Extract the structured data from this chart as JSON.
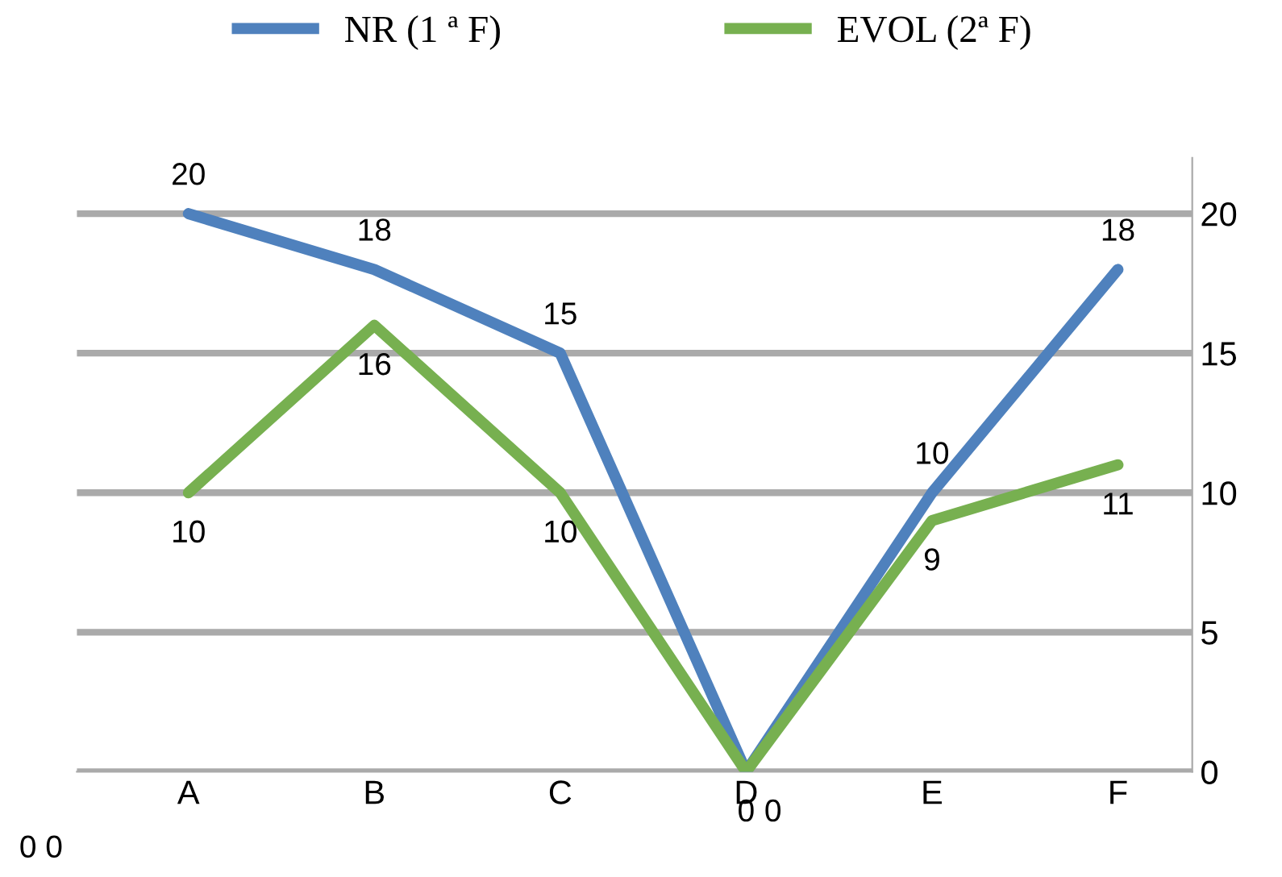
{
  "chart_data": {
    "type": "line",
    "categories": [
      "A",
      "B",
      "C",
      "D",
      "E",
      "F"
    ],
    "series": [
      {
        "name": "NR (1 ª F)",
        "color": "#4f81bd",
        "values": [
          20,
          18,
          15,
          0,
          10,
          18
        ]
      },
      {
        "name": "EVOL (2ª F)",
        "color": "#77b050",
        "values": [
          10,
          16,
          10,
          0,
          9,
          11
        ]
      }
    ],
    "ylim": [
      0,
      22
    ],
    "yticks": [
      0,
      5,
      10,
      15,
      20
    ],
    "grid": "y",
    "legend": "top",
    "data_labels": true,
    "annotations": [
      "0 0"
    ]
  }
}
